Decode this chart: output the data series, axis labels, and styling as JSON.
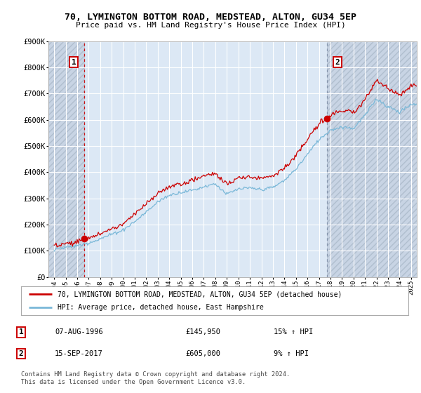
{
  "title": "70, LYMINGTON BOTTOM ROAD, MEDSTEAD, ALTON, GU34 5EP",
  "subtitle": "Price paid vs. HM Land Registry's House Price Index (HPI)",
  "ylabel_ticks": [
    "£0",
    "£100K",
    "£200K",
    "£300K",
    "£400K",
    "£500K",
    "£600K",
    "£700K",
    "£800K",
    "£900K"
  ],
  "ytick_values": [
    0,
    100000,
    200000,
    300000,
    400000,
    500000,
    600000,
    700000,
    800000,
    900000
  ],
  "ylim": [
    0,
    900000
  ],
  "xlim_start": 1993.5,
  "xlim_end": 2025.5,
  "xticks": [
    1994,
    1995,
    1996,
    1997,
    1998,
    1999,
    2000,
    2001,
    2002,
    2003,
    2004,
    2005,
    2006,
    2007,
    2008,
    2009,
    2010,
    2011,
    2012,
    2013,
    2014,
    2015,
    2016,
    2017,
    2018,
    2019,
    2020,
    2021,
    2022,
    2023,
    2024,
    2025
  ],
  "sale1_year": 1996.6,
  "sale1_price": 145950,
  "sale1_label": "1",
  "sale1_date": "07-AUG-1996",
  "sale1_hpi": "15% ↑ HPI",
  "sale2_year": 2017.72,
  "sale2_price": 605000,
  "sale2_label": "2",
  "sale2_date": "15-SEP-2017",
  "sale2_hpi": "9% ↑ HPI",
  "legend_line1": "70, LYMINGTON BOTTOM ROAD, MEDSTEAD, ALTON, GU34 5EP (detached house)",
  "legend_line2": "HPI: Average price, detached house, East Hampshire",
  "footnote": "Contains HM Land Registry data © Crown copyright and database right 2024.\nThis data is licensed under the Open Government Licence v3.0.",
  "table_row1": [
    "1",
    "07-AUG-1996",
    "£145,950",
    "15% ↑ HPI"
  ],
  "table_row2": [
    "2",
    "15-SEP-2017",
    "£605,000",
    "9% ↑ HPI"
  ],
  "hpi_color": "#7ab8d8",
  "price_color": "#cc0000",
  "bg_color": "#dce8f5",
  "hatch_bg": "#c8d4e4",
  "grid_color": "#ffffff",
  "sale_marker_color": "#cc0000",
  "sale2_vline_color": "#8090a8"
}
